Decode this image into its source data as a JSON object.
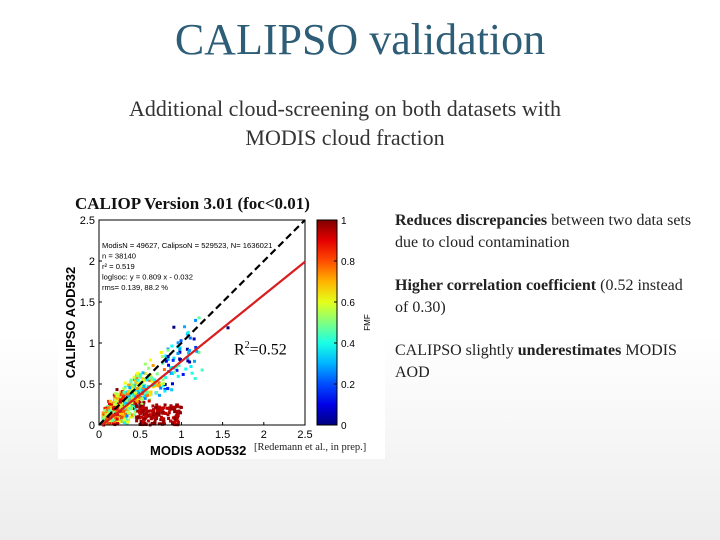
{
  "slide": {
    "title": "CALIPSO validation",
    "subtitle_line1": "Additional cloud-screening on both datasets with",
    "subtitle_line2": "MODIS cloud fraction"
  },
  "figure": {
    "label": "CALIOP Version 3.01 (foc<0.01)",
    "r2_prefix": "R",
    "r2_sup": "2",
    "r2_value": "=0.52",
    "credit": "[Redemann et al., in prep.]"
  },
  "bullets": [
    {
      "bold": "Reduces discrepancies",
      "rest": " between two data sets due to cloud contamination"
    },
    {
      "bold": "Higher correlation coefficient",
      "rest": " (0.52 instead of 0.30)"
    },
    {
      "pre": "CALIPSO slightly ",
      "bold": "underestimates",
      "rest": " MODIS AOD"
    }
  ],
  "chart_data": {
    "type": "scatter",
    "xlabel": "MODIS AOD532",
    "ylabel": "CALIPSO AOD532",
    "xlim": [
      0,
      2.5
    ],
    "ylim": [
      0,
      2.5
    ],
    "x_ticks": [
      "0",
      "0.5",
      "1",
      "1.5",
      "2",
      "2.5"
    ],
    "y_ticks": [
      "0",
      "0.5",
      "1",
      "1.5",
      "2",
      "2.5"
    ],
    "stats_text": [
      "ModisN = 49627, CalipsoN = 529523, N= 1636021",
      "n = 38140",
      "r² = 0.519",
      "loglsoc: y = 0.809 x - 0.032",
      "rms= 0.139, 88.2 %"
    ],
    "fit_line": {
      "slope": 0.809,
      "intercept": -0.032,
      "color": "#d81e1e"
    },
    "one_to_one_line": true,
    "colorbar": {
      "label": "FMF",
      "range": [
        0,
        1
      ],
      "ticks": [
        "0",
        "0.2",
        "0.4",
        "0.6",
        "0.8",
        "1"
      ]
    },
    "grid": false
  }
}
